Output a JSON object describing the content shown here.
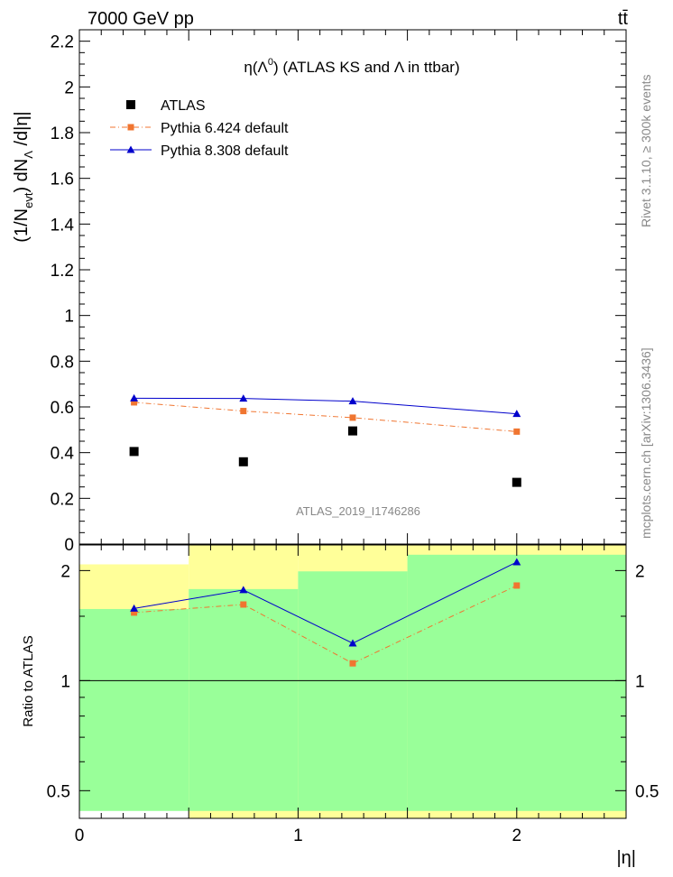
{
  "header": {
    "energy_label": "7000 GeV pp",
    "process_label": "tt̄"
  },
  "side_text": {
    "rivet": "Rivet 3.1.10, ≥ 300k events",
    "mcplots": "mcplots.cern.ch [arXiv:1306.3436]"
  },
  "chart_data": [
    {
      "type": "scatter",
      "panel": "main",
      "title_parts": {
        "eta": "η(Λ",
        "sup": "0",
        "rest": ") (ATLAS KS and Λ in ttbar)"
      },
      "ylabel_parts": {
        "a": "(1/N",
        "b": "evt",
        "c": ") dN",
        "d": "Λ",
        "e": " /d|η|"
      },
      "watermark": "ATLAS_2019_I1746286",
      "xlim": [
        0,
        2.5
      ],
      "ylim": [
        0,
        2.25
      ],
      "yticks": [
        0,
        0.2,
        0.4,
        0.6,
        0.8,
        1,
        1.2,
        1.4,
        1.6,
        1.8,
        2,
        2.2
      ],
      "ytick_labels": [
        "0",
        "0.2",
        "0.4",
        "0.6",
        "0.8",
        "1",
        "1.2",
        "1.4",
        "1.6",
        "1.8",
        "2",
        "2.2"
      ],
      "grid": false,
      "legend_position": "top-left",
      "x": [
        0.25,
        0.75,
        1.25,
        2.0
      ],
      "series": [
        {
          "name": "ATLAS",
          "marker": "square",
          "color": "#000000",
          "values": [
            0.405,
            0.36,
            0.495,
            0.27
          ]
        },
        {
          "name": "Pythia 6.424 default",
          "marker": "small-square",
          "line": "dash-dot",
          "color": "#f07530",
          "values": [
            0.62,
            0.582,
            0.553,
            0.492
          ]
        },
        {
          "name": "Pythia 8.308 default",
          "marker": "triangle",
          "line": "solid",
          "color": "#0000cc",
          "values": [
            0.638,
            0.637,
            0.625,
            0.57
          ]
        }
      ]
    },
    {
      "type": "scatter",
      "panel": "ratio",
      "ylabel": "Ratio to ATLAS",
      "xlabel": "|η|",
      "log_y": true,
      "xlim": [
        0,
        2.5
      ],
      "ylim": [
        0.42,
        2.35
      ],
      "yticks": [
        0.5,
        1,
        2
      ],
      "ytick_labels": [
        "0.5",
        "1",
        "2"
      ],
      "xticks": [
        0,
        1,
        2
      ],
      "xtick_labels": [
        "0",
        "1",
        "2"
      ],
      "reference_line": 1,
      "x": [
        0.25,
        0.75,
        1.25,
        2.0
      ],
      "bin_edges": [
        0,
        0.5,
        1.0,
        1.5,
        2.5
      ],
      "band_1sigma": {
        "color": "#99ff99",
        "low": [
          0.44,
          0.44,
          0.44,
          0.44
        ],
        "high": [
          1.57,
          1.78,
          1.99,
          2.21
        ]
      },
      "band_2sigma": {
        "color": "#ffff99",
        "low": [
          0.455,
          0.42,
          0.42,
          0.42
        ],
        "high": [
          2.08,
          2.35,
          2.35,
          2.35
        ]
      },
      "series": [
        {
          "name": "Pythia 6.424 default",
          "color": "#f07530",
          "values": [
            1.535,
            1.615,
            1.115,
            1.82
          ]
        },
        {
          "name": "Pythia 8.308 default",
          "color": "#0000cc",
          "values": [
            1.575,
            1.77,
            1.265,
            2.11
          ]
        }
      ]
    }
  ]
}
